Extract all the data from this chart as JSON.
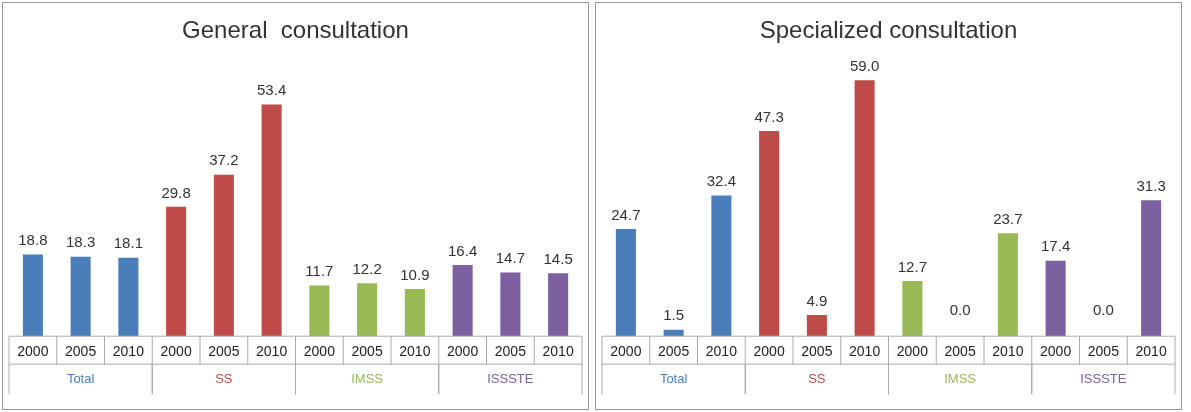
{
  "chart_data": [
    {
      "type": "bar",
      "title": "General  consultation",
      "categories": [
        "2000",
        "2005",
        "2010",
        "2000",
        "2005",
        "2010",
        "2000",
        "2005",
        "2010",
        "2000",
        "2005",
        "2010"
      ],
      "tick_labels": "x",
      "grid": false,
      "legend": false,
      "series": [
        {
          "name": "Total",
          "color": "#4a7ebb",
          "values": [
            18.8,
            18.3,
            18.1,
            null,
            null,
            null,
            null,
            null,
            null,
            null,
            null,
            null
          ],
          "value_labels": [
            "18.8",
            "18.3",
            "18.1",
            null,
            null,
            null,
            null,
            null,
            null,
            null,
            null,
            null
          ]
        },
        {
          "name": "SS",
          "color": "#be4b48",
          "values": [
            null,
            null,
            null,
            29.8,
            37.2,
            53.4,
            null,
            null,
            null,
            null,
            null,
            null
          ],
          "value_labels": [
            null,
            null,
            null,
            "29.8",
            "37.2",
            "53.4",
            null,
            null,
            null,
            null,
            null,
            null
          ]
        },
        {
          "name": "IMSS",
          "color": "#98b954",
          "values": [
            null,
            null,
            null,
            null,
            null,
            null,
            11.7,
            12.2,
            10.9,
            null,
            null,
            null
          ],
          "value_labels": [
            null,
            null,
            null,
            null,
            null,
            null,
            "11.7",
            "12.2",
            "10.9",
            null,
            null,
            null
          ]
        },
        {
          "name": "ISSSTE",
          "color": "#7d60a0",
          "values": [
            null,
            null,
            null,
            null,
            null,
            null,
            null,
            null,
            null,
            16.4,
            14.7,
            14.5
          ],
          "value_labels": [
            null,
            null,
            null,
            null,
            null,
            null,
            null,
            null,
            null,
            "16.4",
            "14.7",
            "14.5"
          ]
        }
      ]
    },
    {
      "type": "bar",
      "title": "Specialized consultation",
      "categories": [
        "2000",
        "2005",
        "2010",
        "2000",
        "2005",
        "2010",
        "2000",
        "2005",
        "2010",
        "2000",
        "2005",
        "2010"
      ],
      "tick_labels": "x",
      "grid": false,
      "legend": false,
      "series": [
        {
          "name": "Total",
          "color": "#4a7ebb",
          "values": [
            24.7,
            1.5,
            32.4,
            null,
            null,
            null,
            null,
            null,
            null,
            null,
            null,
            null
          ],
          "value_labels": [
            "24.7",
            "1.5",
            "32.4",
            null,
            null,
            null,
            null,
            null,
            null,
            null,
            null,
            null
          ]
        },
        {
          "name": "SS",
          "color": "#be4b48",
          "values": [
            null,
            null,
            null,
            47.3,
            4.9,
            59.0,
            null,
            null,
            null,
            null,
            null,
            null
          ],
          "value_labels": [
            null,
            null,
            null,
            "47.3",
            "4.9",
            "59.0",
            null,
            null,
            null,
            null,
            null,
            null
          ]
        },
        {
          "name": "IMSS",
          "color": "#98b954",
          "values": [
            null,
            null,
            null,
            null,
            null,
            null,
            12.7,
            0.0,
            23.7,
            null,
            null,
            null
          ],
          "value_labels": [
            null,
            null,
            null,
            null,
            null,
            null,
            "12.7",
            "0.0",
            "23.7",
            null,
            null,
            null
          ]
        },
        {
          "name": "ISSSTE",
          "color": "#7d60a0",
          "values": [
            null,
            null,
            null,
            null,
            null,
            null,
            null,
            null,
            null,
            17.4,
            0.0,
            31.3
          ],
          "value_labels": [
            null,
            null,
            null,
            null,
            null,
            null,
            null,
            null,
            null,
            "17.4",
            "0.0",
            "31.3"
          ]
        }
      ]
    }
  ]
}
